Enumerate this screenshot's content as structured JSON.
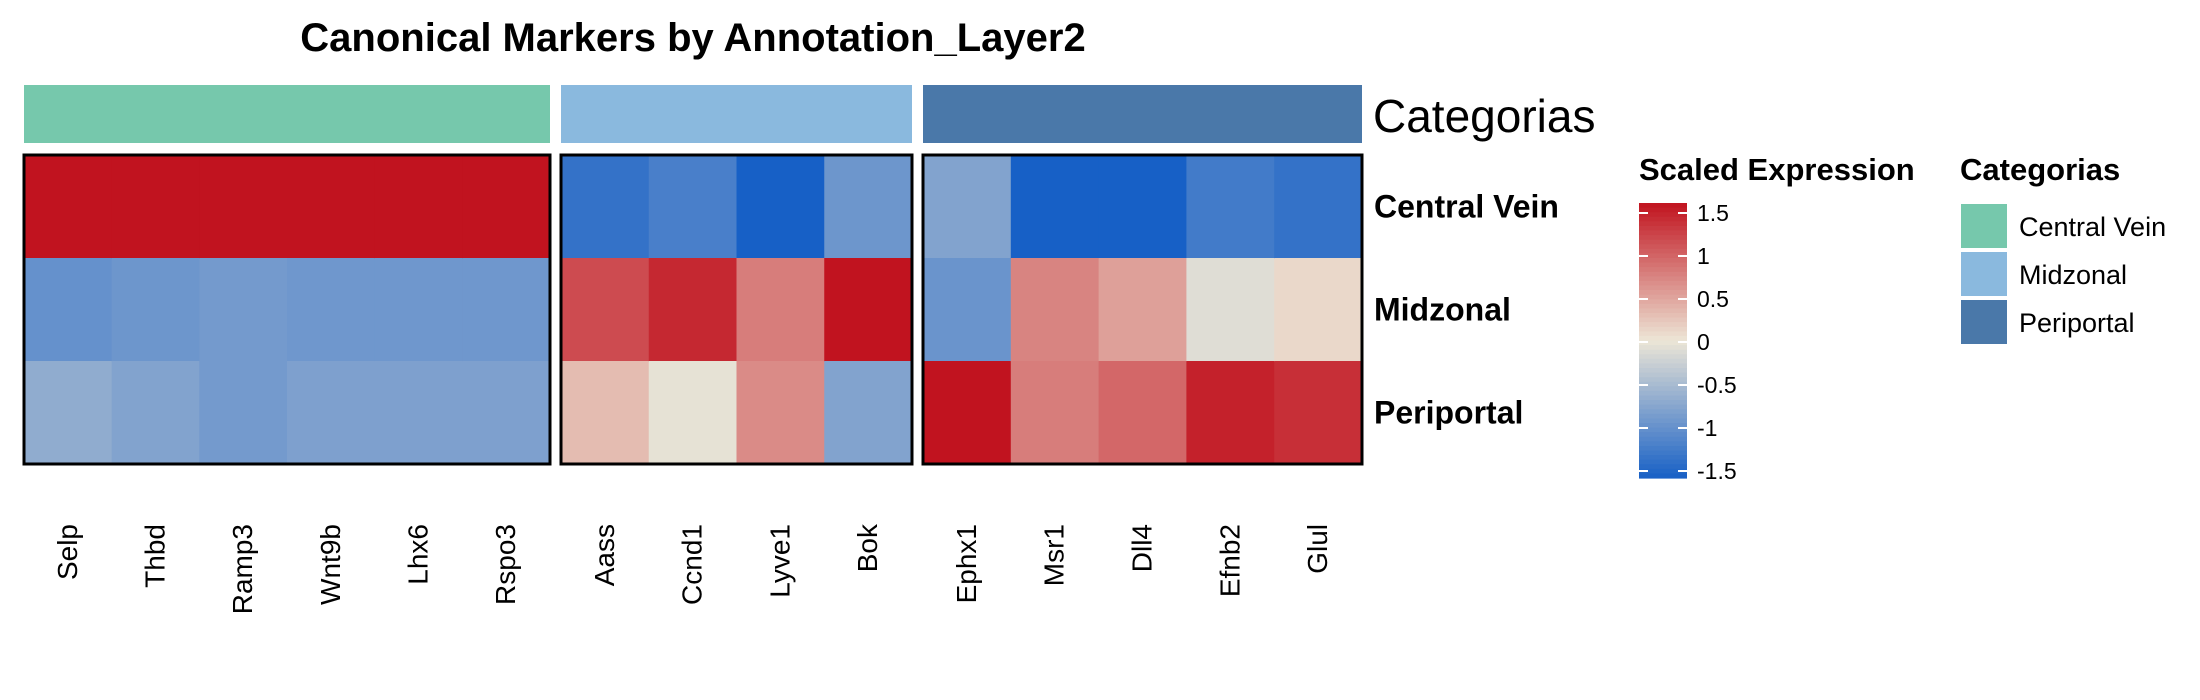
{
  "chart_data": {
    "type": "heatmap",
    "title": "Canonical Markers by Annotation_Layer2",
    "annotation_label": "Categorias",
    "rows": [
      "Central Vein",
      "Midzonal",
      "Periportal"
    ],
    "column_groups": [
      {
        "category": "Central Vein",
        "color": "#76C8AC",
        "genes": [
          "Selp",
          "Thbd",
          "Ramp3",
          "Wnt9b",
          "Lhx6",
          "Rspo3"
        ]
      },
      {
        "category": "Midzonal",
        "color": "#8AB9DE",
        "genes": [
          "Aass",
          "Ccnd1",
          "Lyve1",
          "Bok"
        ]
      },
      {
        "category": "Periportal",
        "color": "#4A78A9",
        "genes": [
          "Ephx1",
          "Msr1",
          "Dll4",
          "Efnb2",
          "Glul"
        ]
      }
    ],
    "values": [
      [
        1.5,
        1.55,
        1.55,
        1.55,
        1.55,
        1.55,
        -1.3,
        -1.15,
        -1.5,
        -0.9,
        -0.75,
        -1.5,
        -1.5,
        -1.2,
        -1.3
      ],
      [
        -0.95,
        -0.9,
        -0.85,
        -0.88,
        -0.88,
        -0.88,
        1.1,
        1.35,
        0.75,
        1.55,
        -0.92,
        0.7,
        0.5,
        -0.1,
        0.1
      ],
      [
        -0.65,
        -0.75,
        -0.85,
        -0.78,
        -0.78,
        -0.78,
        0.3,
        -0.05,
        0.65,
        -0.75,
        1.55,
        0.75,
        0.9,
        1.4,
        1.3
      ]
    ],
    "colorbar": {
      "title": "Scaled Expression",
      "ticks": [
        "1.5",
        "1",
        "0.5",
        "0",
        "-0.5",
        "-1",
        "-1.5"
      ],
      "range": [
        -1.5,
        1.5
      ],
      "low_color": "#1760C6",
      "mid_color": "#EDE6D6",
      "high_color": "#C1131F"
    },
    "category_legend": {
      "title": "Categorias",
      "items": [
        {
          "label": "Central Vein",
          "color": "#76C8AC"
        },
        {
          "label": "Midzonal",
          "color": "#8AB9DE"
        },
        {
          "label": "Periportal",
          "color": "#4A78A9"
        }
      ]
    }
  }
}
